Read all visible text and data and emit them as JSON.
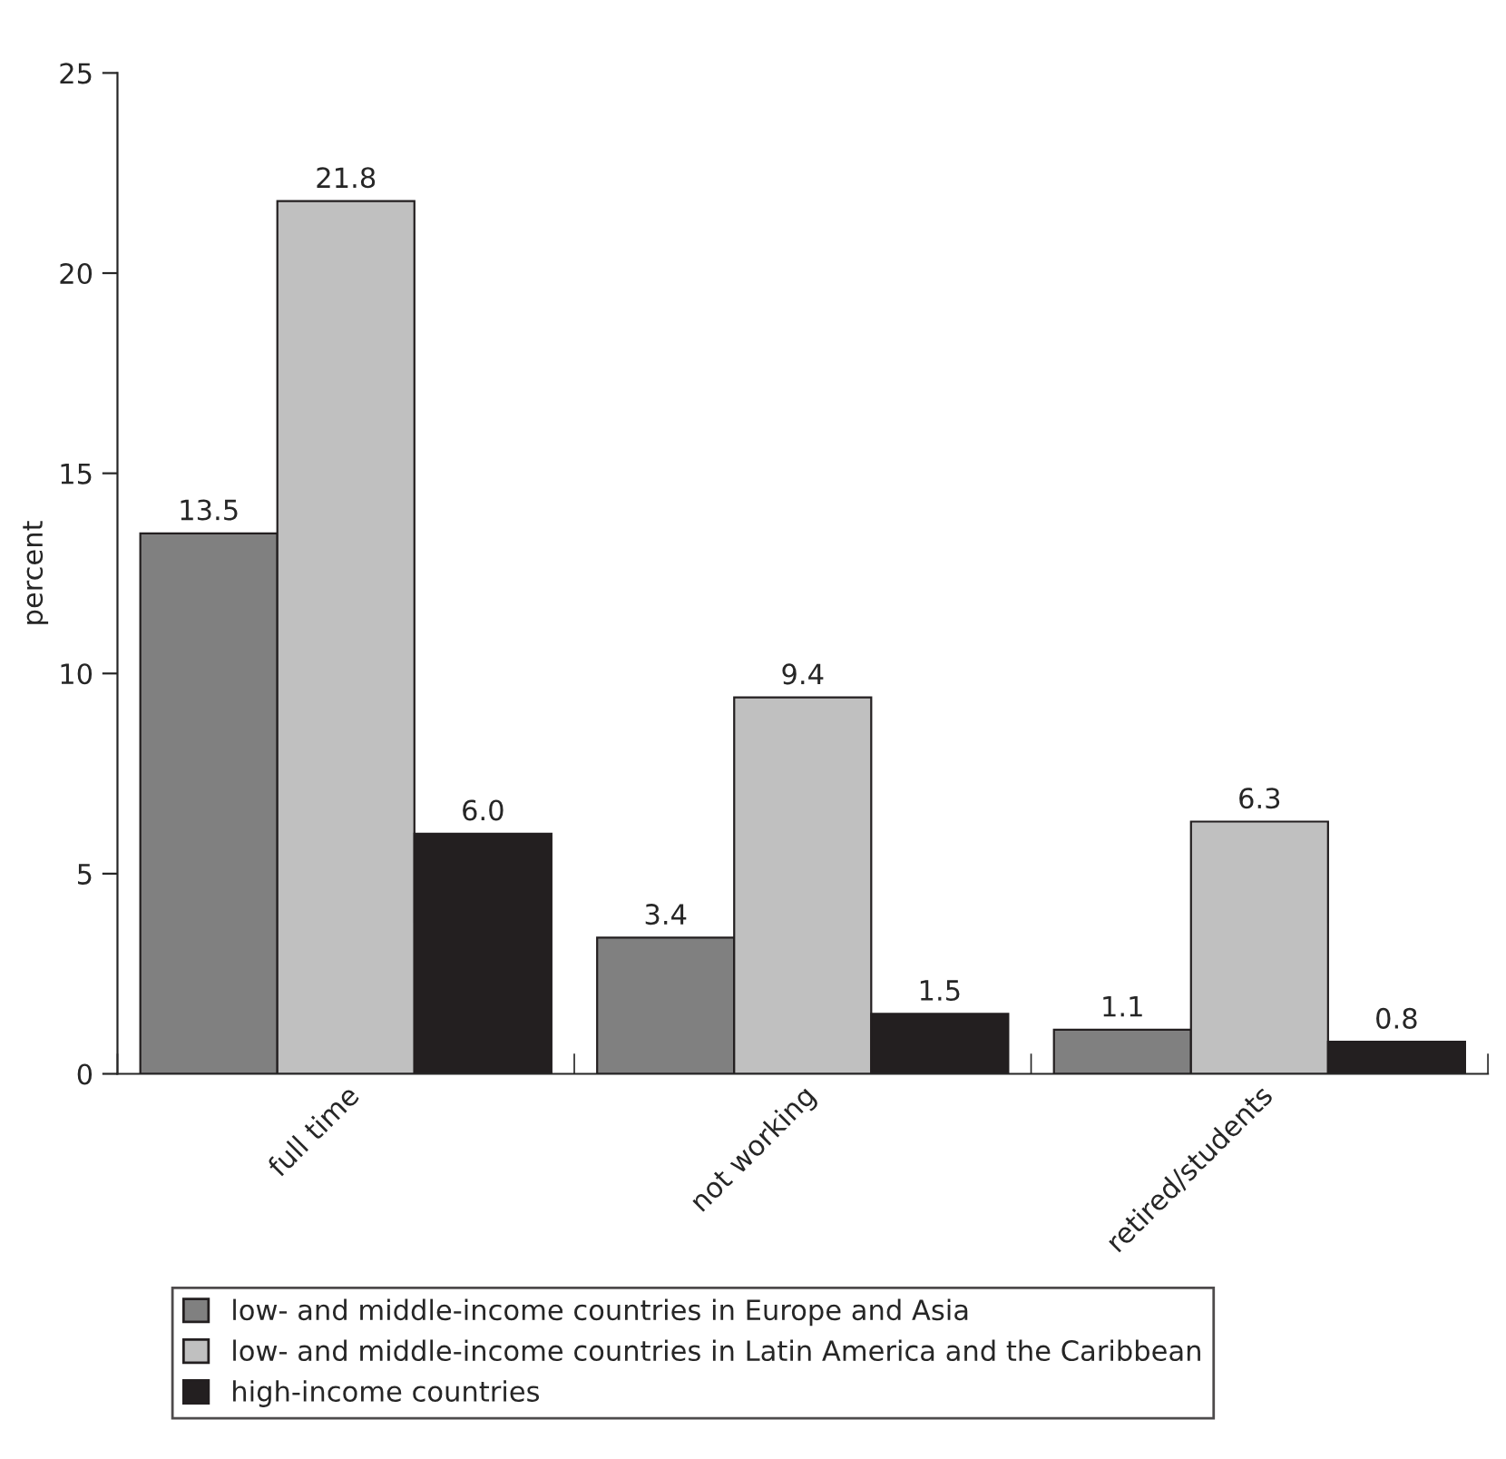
{
  "chart_data": {
    "type": "bar",
    "categories": [
      "full time",
      "not working",
      "retired/students"
    ],
    "series": [
      {
        "name": "low- and middle-income countries in Europe and Asia",
        "color": "#808080",
        "values": [
          13.5,
          3.4,
          1.1
        ],
        "value_labels": [
          "13.5",
          "3.4",
          "1.1"
        ]
      },
      {
        "name": "low- and middle-income countries in Latin America and the Caribbean",
        "color": "#c0c0c0",
        "values": [
          21.8,
          9.4,
          6.3
        ],
        "value_labels": [
          "21.8",
          "9.4",
          "6.3"
        ]
      },
      {
        "name": "high-income countries",
        "color": "#231f20",
        "values": [
          6.0,
          1.5,
          0.8
        ],
        "value_labels": [
          "6.0",
          "1.5",
          "0.8"
        ]
      }
    ],
    "ylabel": "percent",
    "ylim": [
      0,
      25
    ],
    "yticks": [
      0,
      5,
      10,
      15,
      20,
      25
    ],
    "grid": false,
    "legend": "bottom"
  }
}
